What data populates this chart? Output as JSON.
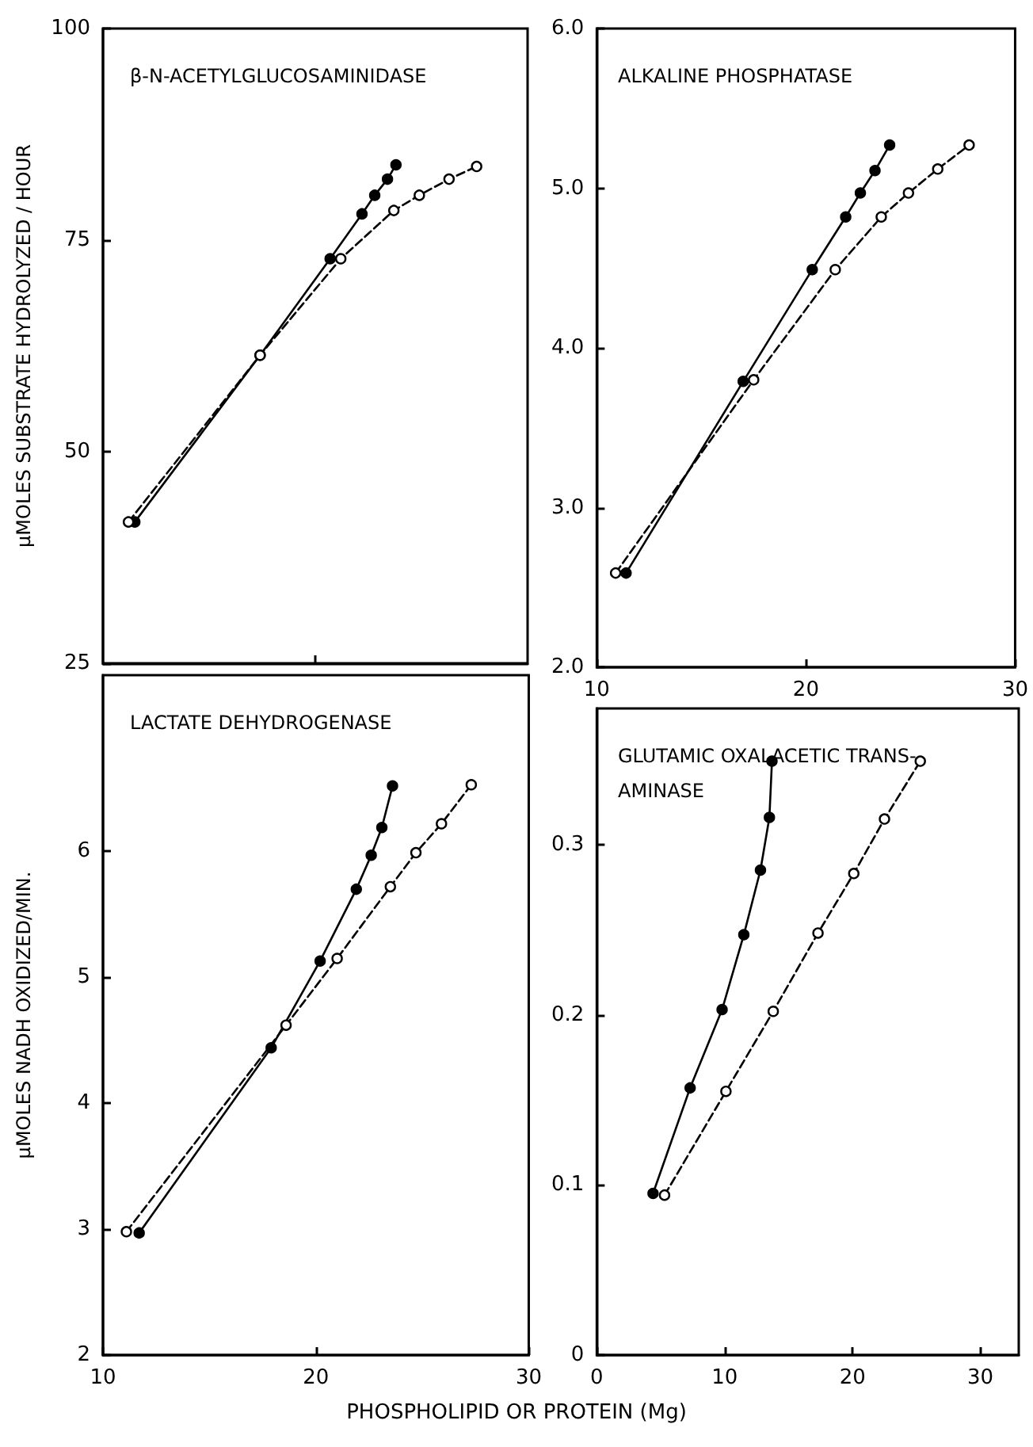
{
  "chart_data": [
    {
      "type": "line",
      "title": "β-N-ACETYLGLUCOSAMINIDASE",
      "ylabel": "μMOLES SUBSTRATE HYDROLYZED / HOUR",
      "xlim": [
        10,
        30
      ],
      "xticks": [
        {
          "value": 20,
          "label": null
        }
      ],
      "ylim": [
        25,
        100
      ],
      "yticks": [
        25,
        50,
        75,
        100
      ],
      "tick_labels": "y",
      "marker": "circle",
      "series": [
        {
          "color": "#000000",
          "line_style": "solid",
          "x": [
            11.5,
            17.4,
            20.7,
            22.2,
            22.8,
            23.4,
            23.8
          ],
          "values": [
            41.7,
            61.4,
            72.8,
            78.1,
            80.3,
            82.2,
            83.9
          ]
        },
        {
          "color": "#000000",
          "line_style": "dashed",
          "x": [
            11.2,
            17.4,
            21.2,
            23.7,
            24.9,
            26.3,
            27.6
          ],
          "values": [
            41.7,
            61.4,
            72.8,
            78.5,
            80.3,
            82.2,
            83.7
          ]
        }
      ]
    },
    {
      "type": "line",
      "title": "ALKALINE PHOSPHATASE",
      "xlim": [
        10,
        30
      ],
      "xticks": [
        10,
        20,
        30
      ],
      "ylim": [
        2,
        6
      ],
      "yticks": [
        {
          "value": 2,
          "label": "2.0"
        },
        {
          "value": 3,
          "label": "3.0"
        },
        {
          "value": 4,
          "label": "4.0"
        },
        {
          "value": 5,
          "label": "5.0"
        },
        {
          "value": 6,
          "label": "6.0"
        }
      ],
      "marker": "circle",
      "series": [
        {
          "color": "#000000",
          "line_style": "solid",
          "x": [
            11.4,
            17.0,
            20.3,
            21.9,
            22.6,
            23.3,
            24.0
          ],
          "values": [
            2.59,
            3.79,
            4.49,
            4.82,
            4.97,
            5.11,
            5.27
          ]
        },
        {
          "color": "#000000",
          "line_style": "dashed",
          "x": [
            10.9,
            17.5,
            21.4,
            23.6,
            24.9,
            26.3,
            27.8
          ],
          "values": [
            2.59,
            3.8,
            4.49,
            4.82,
            4.97,
            5.12,
            5.27
          ]
        }
      ]
    },
    {
      "type": "line",
      "title": "LACTATE DEHYDROGENASE",
      "ylabel": "μMOLES NADH OXIDIZED/MIN.",
      "xlabel": "PHOSPHOLIPID OR PROTEIN (Mg)",
      "xlim": [
        10,
        30
      ],
      "xticks": [
        10,
        20,
        30
      ],
      "ylim": [
        2,
        7.4
      ],
      "yticks": [
        2,
        3,
        4,
        5,
        6
      ],
      "marker": "circle",
      "series": [
        {
          "color": "#000000",
          "line_style": "solid",
          "x": [
            11.7,
            17.9,
            20.2,
            21.9,
            22.6,
            23.1,
            23.6
          ],
          "values": [
            2.97,
            4.44,
            5.13,
            5.7,
            5.97,
            6.19,
            6.52
          ]
        },
        {
          "color": "#000000",
          "line_style": "dashed",
          "x": [
            11.1,
            18.6,
            21.0,
            23.5,
            24.7,
            25.9,
            27.3
          ],
          "values": [
            2.98,
            4.62,
            5.15,
            5.72,
            5.99,
            6.22,
            6.53
          ]
        }
      ]
    },
    {
      "type": "line",
      "title": "GLUTAMIC OXALACETIC TRANS-\nAMINASE",
      "xlim": [
        0,
        33
      ],
      "xticks": [
        0,
        10,
        20,
        30
      ],
      "ylim": [
        0,
        0.38
      ],
      "yticks": [
        0,
        0.1,
        0.2,
        0.3
      ],
      "marker": "circle",
      "series": [
        {
          "color": "#000000",
          "line_style": "solid",
          "x": [
            4.4,
            7.3,
            9.8,
            11.5,
            12.8,
            13.5,
            13.7
          ],
          "values": [
            0.095,
            0.157,
            0.203,
            0.247,
            0.285,
            0.316,
            0.349
          ]
        },
        {
          "color": "#000000",
          "line_style": "dashed",
          "x": [
            5.3,
            10.1,
            13.8,
            17.3,
            20.1,
            22.5,
            25.3
          ],
          "values": [
            0.094,
            0.155,
            0.202,
            0.248,
            0.283,
            0.315,
            0.349
          ]
        }
      ]
    }
  ]
}
